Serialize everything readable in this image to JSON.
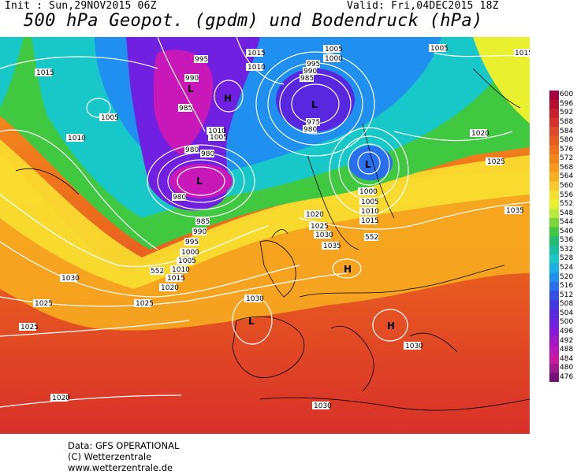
{
  "header": {
    "init": "Init : Sun,29NOV2015 06Z",
    "valid": "Valid: Fri,04DEC2015 18Z",
    "title": "500 hPa Geopot. (gpdm) und Bodendruck (hPa)"
  },
  "colorbar": {
    "ticks": [
      "600",
      "596",
      "592",
      "588",
      "584",
      "580",
      "576",
      "572",
      "568",
      "564",
      "560",
      "556",
      "552",
      "548",
      "544",
      "540",
      "536",
      "532",
      "528",
      "524",
      "520",
      "516",
      "512",
      "508",
      "504",
      "500",
      "496",
      "492",
      "488",
      "484",
      "480",
      "476"
    ],
    "colors": [
      "#a8003c",
      "#b8102c",
      "#c8202a",
      "#d8302a",
      "#e04828",
      "#e85c20",
      "#f07018",
      "#f48418",
      "#f89a18",
      "#f8b020",
      "#f8c828",
      "#f8e030",
      "#e8f030",
      "#b8e838",
      "#78d838",
      "#40c840",
      "#20c070",
      "#18c0a0",
      "#18c8c8",
      "#18b0e0",
      "#2090f0",
      "#2870f0",
      "#3050e8",
      "#4038e0",
      "#5828e0",
      "#7020e0",
      "#8818d8",
      "#a018c8",
      "#b818b8",
      "#c818a0",
      "#a01890",
      "#780e78"
    ]
  },
  "isobars": [
    "1015",
    "1010",
    "1005",
    "1000",
    "995",
    "990",
    "985",
    "980",
    "975",
    "1020",
    "1025",
    "1030",
    "1035",
    "552"
  ],
  "pressure_centers": [
    {
      "label": "L",
      "kind": "low"
    },
    {
      "label": "L",
      "kind": "low"
    },
    {
      "label": "L",
      "kind": "low"
    },
    {
      "label": "L",
      "kind": "low"
    },
    {
      "label": "L",
      "kind": "low"
    },
    {
      "label": "H",
      "kind": "high"
    },
    {
      "label": "H",
      "kind": "high"
    },
    {
      "label": "H",
      "kind": "high"
    }
  ],
  "labels": [
    "1015",
    "1010",
    "1005",
    "1000",
    "995",
    "990",
    "985",
    "980",
    "975",
    "1020",
    "1025",
    "1030",
    "1035",
    "552"
  ],
  "footer": {
    "line1": "Data: GFS OPERATIONAL",
    "line2": "(C) Wetterzentrale",
    "line3": "www.wetterzentrale.de"
  }
}
